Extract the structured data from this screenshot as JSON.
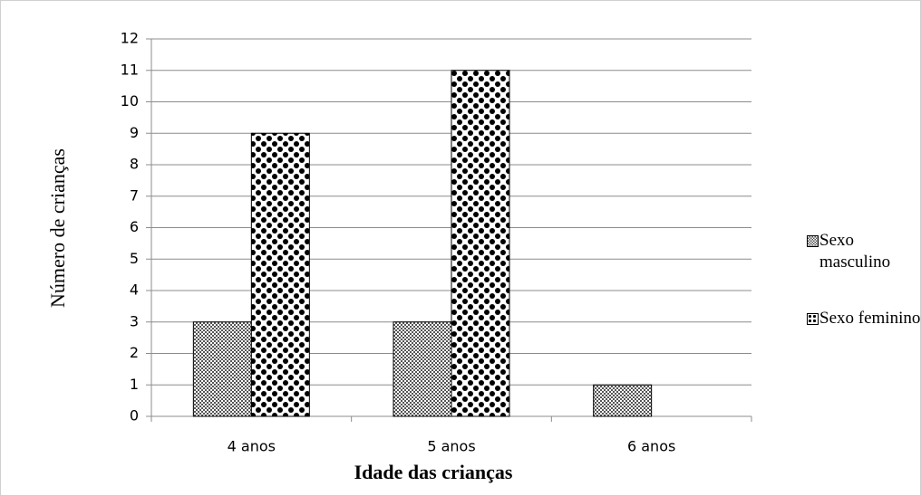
{
  "chart_data": {
    "type": "bar",
    "x_label": "Idade das crianças",
    "y_label": "Número de crianças",
    "categories": [
      "4 anos",
      "5 anos",
      "6 anos"
    ],
    "series": [
      {
        "name": "Sexo masculino",
        "color": "#555555",
        "values": [
          3,
          3,
          1
        ]
      },
      {
        "name": "Sexo feminino",
        "color": "#000000",
        "values": [
          9,
          11,
          0
        ]
      }
    ],
    "ylim": [
      0,
      12
    ],
    "yticks": [
      0,
      1,
      2,
      3,
      4,
      5,
      6,
      7,
      8,
      9,
      10,
      11,
      12
    ],
    "grid": true,
    "legend": "right"
  }
}
